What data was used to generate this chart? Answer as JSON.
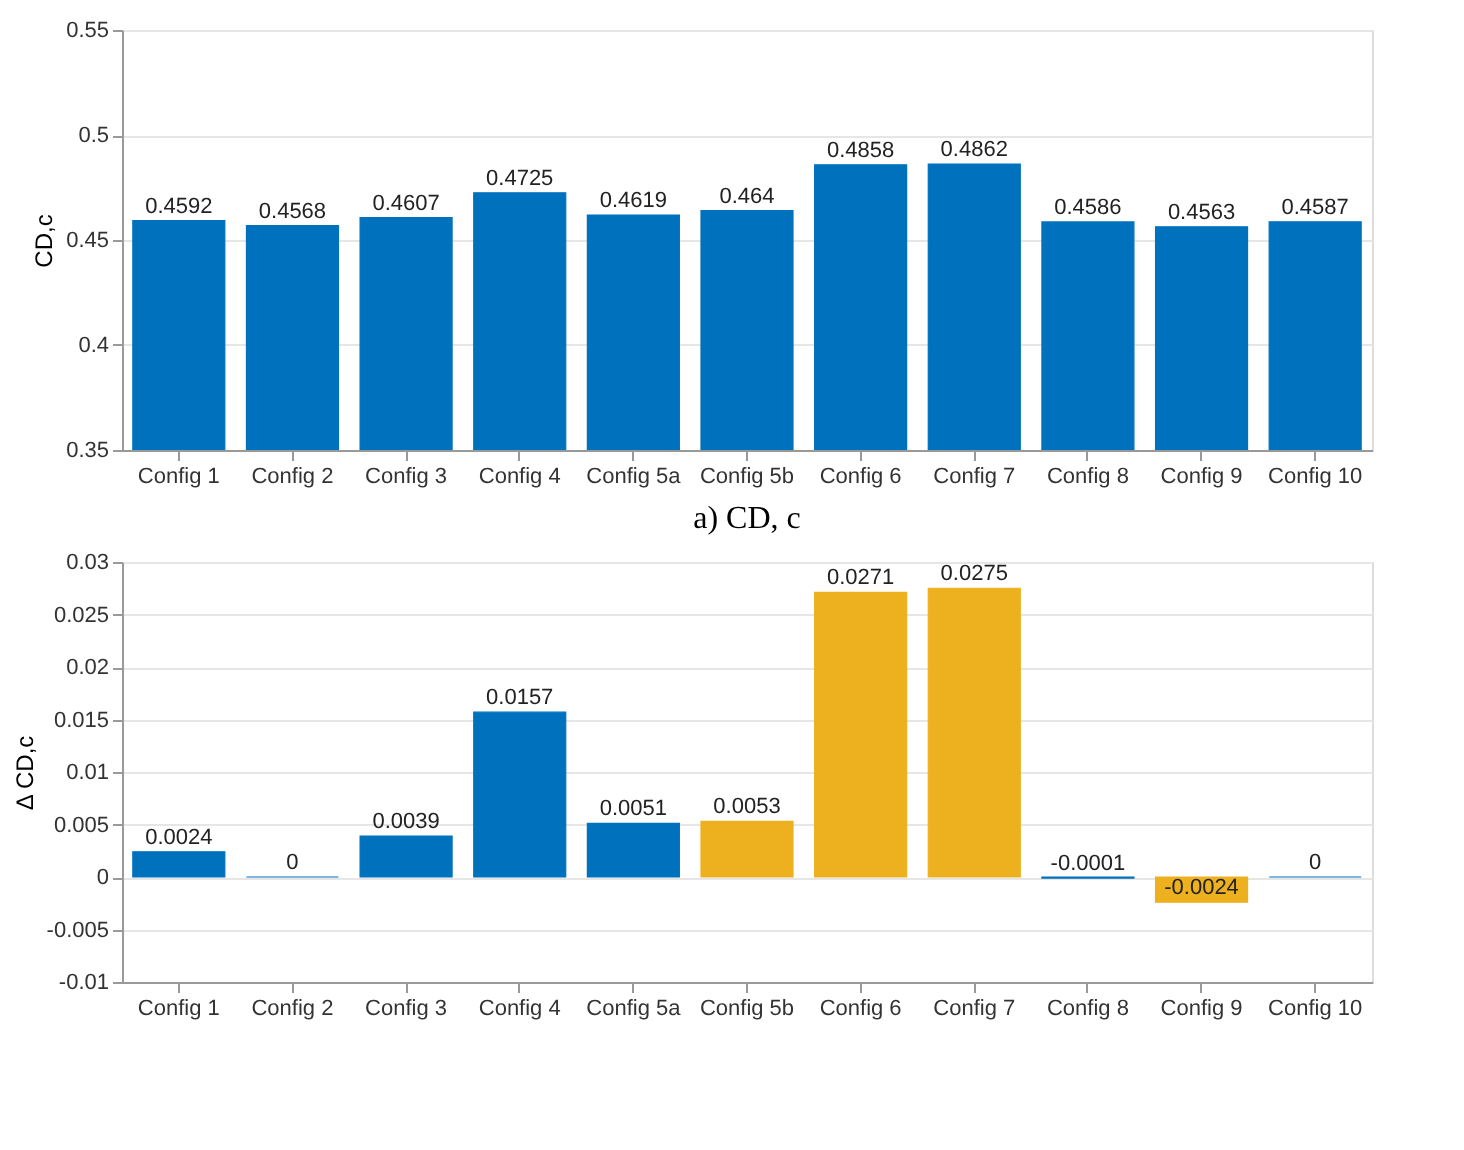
{
  "chart_data": [
    {
      "type": "bar",
      "ylabel": "CD,c",
      "categories": [
        "Config 1",
        "Config 2",
        "Config 3",
        "Config 4",
        "Config 5a",
        "Config 5b",
        "Config 6",
        "Config 7",
        "Config 8",
        "Config 9",
        "Config 10"
      ],
      "values": [
        0.4592,
        0.4568,
        0.4607,
        0.4725,
        0.4619,
        0.464,
        0.4858,
        0.4862,
        0.4586,
        0.4563,
        0.4587
      ],
      "colors": [
        "#0072bd",
        "#0072bd",
        "#0072bd",
        "#0072bd",
        "#0072bd",
        "#0072bd",
        "#0072bd",
        "#0072bd",
        "#0072bd",
        "#0072bd",
        "#0072bd"
      ],
      "ylim": [
        0.35,
        0.55
      ],
      "yticks": [
        0.35,
        0.4,
        0.45,
        0.5,
        0.55
      ],
      "grid": "y",
      "data_labels": true,
      "annotations": [
        "a) CD, c"
      ]
    },
    {
      "type": "bar",
      "ylabel": "Δ CD,c",
      "categories": [
        "Config 1",
        "Config 2",
        "Config 3",
        "Config 4",
        "Config 5a",
        "Config 5b",
        "Config 6",
        "Config 7",
        "Config 8",
        "Config 9",
        "Config 10"
      ],
      "values": [
        0.0024,
        0,
        0.0039,
        0.0157,
        0.0051,
        0.0053,
        0.0271,
        0.0275,
        -0.0001,
        -0.0024,
        0
      ],
      "colors": [
        "#0072bd",
        "#0072bd",
        "#0072bd",
        "#0072bd",
        "#0072bd",
        "#edb120",
        "#edb120",
        "#edb120",
        "#0072bd",
        "#edb120",
        "#0072bd"
      ],
      "ylim": [
        -0.01,
        0.03
      ],
      "yticks": [
        -0.01,
        -0.005,
        0,
        0.005,
        0.01,
        0.015,
        0.02,
        0.025,
        0.03
      ],
      "grid": "y",
      "data_labels": true
    }
  ]
}
